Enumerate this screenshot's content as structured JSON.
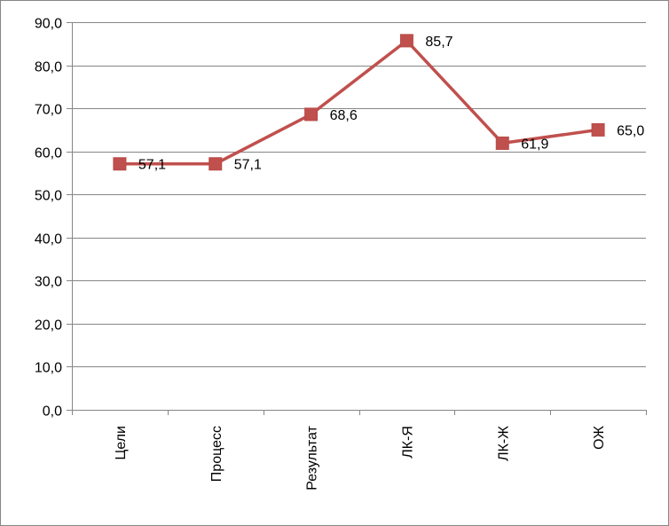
{
  "chart_data": {
    "type": "line",
    "categories": [
      "Цели",
      "Процесс",
      "Результат",
      "ЛК-Я",
      "ЛК-Ж",
      "ОЖ"
    ],
    "series": [
      {
        "values": [
          57.1,
          57.1,
          68.6,
          85.7,
          61.9,
          65.0
        ],
        "data_labels": [
          "57,1",
          "57,1",
          "68,6",
          "85,7",
          "61,9",
          "65,0"
        ],
        "color": "#C0504D",
        "marker": "square"
      }
    ],
    "y_ticks": [
      "0,0",
      "10,0",
      "20,0",
      "30,0",
      "40,0",
      "50,0",
      "60,0",
      "70,0",
      "80,0",
      "90,0"
    ],
    "ylim": [
      0,
      90
    ],
    "grid": true,
    "legend": "none",
    "title": "",
    "xlabel": "",
    "ylabel": ""
  }
}
